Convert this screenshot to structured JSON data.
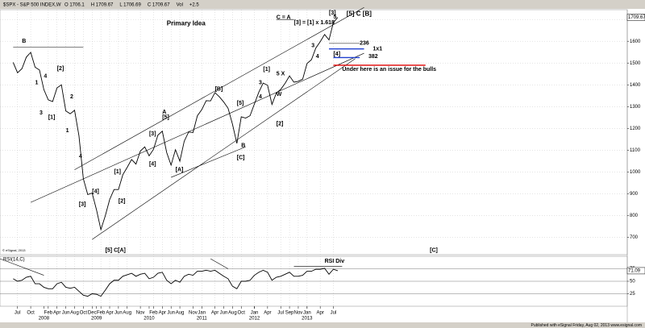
{
  "chart_data": [
    {
      "type": "line",
      "title": "$SPX - S&P 500 INDEX,W",
      "quote": [
        "O 1706.1",
        "H 1709.67",
        "L 1706.69",
        "C 1709.67",
        "Vol",
        "+2.5"
      ],
      "x": [
        "2007-06",
        "2007-07",
        "2007-08",
        "2007-09",
        "2007-10",
        "2007-11",
        "2007-12",
        "2008-01",
        "2008-02",
        "2008-03",
        "2008-04",
        "2008-05",
        "2008-06",
        "2008-07",
        "2008-08",
        "2008-09",
        "2008-10",
        "2008-11",
        "2008-12",
        "2009-01",
        "2009-02",
        "2009-03",
        "2009-04",
        "2009-05",
        "2009-06",
        "2009-07",
        "2009-08",
        "2009-09",
        "2009-10",
        "2009-11",
        "2009-12",
        "2010-01",
        "2010-02",
        "2010-03",
        "2010-04",
        "2010-05",
        "2010-06",
        "2010-07",
        "2010-08",
        "2010-09",
        "2010-10",
        "2010-11",
        "2010-12",
        "2011-01",
        "2011-02",
        "2011-03",
        "2011-04",
        "2011-05",
        "2011-06",
        "2011-07",
        "2011-08",
        "2011-09",
        "2011-10",
        "2011-11",
        "2011-12",
        "2012-01",
        "2012-02",
        "2012-03",
        "2012-04",
        "2012-05",
        "2012-06",
        "2012-07",
        "2012-08",
        "2012-09",
        "2012-10",
        "2012-11",
        "2012-12",
        "2013-01",
        "2013-02",
        "2013-03",
        "2013-04",
        "2013-05",
        "2013-06",
        "2013-07",
        "2013-08"
      ],
      "values": [
        1503,
        1455,
        1474,
        1527,
        1549,
        1481,
        1468,
        1378,
        1331,
        1323,
        1386,
        1400,
        1280,
        1267,
        1283,
        1166,
        969,
        896,
        903,
        826,
        735,
        798,
        873,
        919,
        919,
        987,
        1021,
        1057,
        1036,
        1096,
        1115,
        1074,
        1104,
        1169,
        1187,
        1089,
        1031,
        1102,
        1049,
        1141,
        1183,
        1181,
        1258,
        1286,
        1327,
        1326,
        1364,
        1345,
        1321,
        1292,
        1219,
        1131,
        1253,
        1247,
        1258,
        1312,
        1366,
        1408,
        1398,
        1310,
        1362,
        1379,
        1407,
        1441,
        1412,
        1416,
        1426,
        1498,
        1515,
        1569,
        1598,
        1631,
        1606,
        1686,
        1709.67
      ],
      "color": "#000000",
      "xlim": [
        "2007-03",
        "2019-02"
      ],
      "ylim": [
        620,
        1745
      ],
      "yticks": [
        700,
        800,
        900,
        1000,
        1100,
        1200,
        1300,
        1400,
        1500,
        1600,
        1700
      ],
      "grid": true,
      "xticks": [
        {
          "value": "2007-07",
          "label": "Jul"
        },
        {
          "value": "2007-10",
          "label": "Oct"
        },
        {
          "value": "2008-02",
          "label": "Feb"
        },
        {
          "value": "2008-04",
          "label": "Apr"
        },
        {
          "value": "2008-06",
          "label": "Jun"
        },
        {
          "value": "2008-08",
          "label": "Aug"
        },
        {
          "value": "2008-10",
          "label": "Oct"
        },
        {
          "value": "2008-12",
          "label": "Dec"
        },
        {
          "value": "2009-02",
          "label": "Feb"
        },
        {
          "value": "2009-04",
          "label": "Apr"
        },
        {
          "value": "2009-06",
          "label": "Jun"
        },
        {
          "value": "2009-08",
          "label": "Aug"
        },
        {
          "value": "2009-11",
          "label": "Nov"
        },
        {
          "value": "2010-02",
          "label": "Feb"
        },
        {
          "value": "2010-04",
          "label": "Apr"
        },
        {
          "value": "2010-06",
          "label": "Jun"
        },
        {
          "value": "2010-08",
          "label": "Aug"
        },
        {
          "value": "2010-11",
          "label": "Nov"
        },
        {
          "value": "2011-01",
          "label": "Jan"
        },
        {
          "value": "2011-04",
          "label": "Apr"
        },
        {
          "value": "2011-06",
          "label": "Jun"
        },
        {
          "value": "2011-08",
          "label": "Aug"
        },
        {
          "value": "2011-10",
          "label": "Oct"
        },
        {
          "value": "2012-01",
          "label": "Jan"
        },
        {
          "value": "2012-04",
          "label": "Apr"
        },
        {
          "value": "2012-07",
          "label": "Jul"
        },
        {
          "value": "2012-09",
          "label": "Sep"
        },
        {
          "value": "2012-11",
          "label": "Nov"
        },
        {
          "value": "2013-01",
          "label": "Jan"
        },
        {
          "value": "2013-04",
          "label": "Apr"
        },
        {
          "value": "2013-07",
          "label": "Jul"
        }
      ],
      "year_ticks": [
        {
          "value": "2008-01",
          "label": "2008"
        },
        {
          "value": "2009-01",
          "label": "2009"
        },
        {
          "value": "2010-01",
          "label": "2010"
        },
        {
          "value": "2011-01",
          "label": "2011"
        },
        {
          "value": "2012-01",
          "label": "2012"
        },
        {
          "value": "2013-01",
          "label": "2013"
        }
      ],
      "annotations": [
        {
          "text": "Primary Idea",
          "x": "2010-05",
          "y": 1680,
          "big": true
        },
        {
          "text": "B",
          "x": "2007-08",
          "y": 1600
        },
        {
          "text": "1",
          "x": "2007-11",
          "y": 1410
        },
        {
          "text": "4",
          "x": "2008-01",
          "y": 1440
        },
        {
          "text": "[2]",
          "x": "2008-04",
          "y": 1475
        },
        {
          "text": "3",
          "x": "2007-12",
          "y": 1270
        },
        {
          "text": "[1]",
          "x": "2008-02",
          "y": 1250
        },
        {
          "text": "2",
          "x": "2008-07",
          "y": 1345
        },
        {
          "text": "1",
          "x": "2008-06",
          "y": 1190
        },
        {
          "text": "4",
          "x": "2008-09",
          "y": 1070
        },
        {
          "text": "[3]",
          "x": "2008-09",
          "y": 850
        },
        {
          "text": "[4]",
          "x": "2008-12",
          "y": 910
        },
        {
          "text": "[5] C[A]",
          "x": "2009-03",
          "y": 640
        },
        {
          "text": "[1]",
          "x": "2009-05",
          "y": 1000
        },
        {
          "text": "[2]",
          "x": "2009-06",
          "y": 865
        },
        {
          "text": "[3]",
          "x": "2010-01",
          "y": 1175
        },
        {
          "text": "[4]",
          "x": "2010-01",
          "y": 1035
        },
        {
          "text": "A",
          "x": "2010-04",
          "y": 1275
        },
        {
          "text": "[5]",
          "x": "2010-04",
          "y": 1250
        },
        {
          "text": "[A]",
          "x": "2010-07",
          "y": 1010
        },
        {
          "text": "[B]",
          "x": "2011-04",
          "y": 1380
        },
        {
          "text": "[5]",
          "x": "2011-09",
          "y": 1315
        },
        {
          "text": "[C]",
          "x": "2011-09",
          "y": 1065
        },
        {
          "text": "B",
          "x": "2011-10",
          "y": 1120
        },
        {
          "text": "3",
          "x": "2012-02",
          "y": 1410
        },
        {
          "text": "[1]",
          "x": "2012-03",
          "y": 1470
        },
        {
          "text": "4",
          "x": "2012-02",
          "y": 1345
        },
        {
          "text": "5 X",
          "x": "2012-06",
          "y": 1450
        },
        {
          "text": "W",
          "x": "2012-06",
          "y": 1355
        },
        {
          "text": "[2]",
          "x": "2012-06",
          "y": 1220
        },
        {
          "text": "C = A",
          "x": "2012-06",
          "y": 1710
        },
        {
          "text": "[3] = [1] x 1.618",
          "x": "2012-10",
          "y": 1685
        },
        {
          "text": "3",
          "x": "2013-02",
          "y": 1580
        },
        {
          "text": "4",
          "x": "2013-03",
          "y": 1530
        },
        {
          "text": "[4]",
          "x": "2013-07",
          "y": 1540
        },
        {
          "text": "[3]",
          "x": "2013-06",
          "y": 1730
        },
        {
          "text": "5",
          "x": "2013-07",
          "y": 1712
        },
        {
          "text": "[5] C [B]",
          "x": "2013-10",
          "y": 1725,
          "big": true
        },
        {
          "text": "236",
          "x": "2014-01",
          "y": 1590
        },
        {
          "text": "1x1",
          "x": "2014-04",
          "y": 1565
        },
        {
          "text": "382",
          "x": "2014-03",
          "y": 1530
        },
        {
          "text": "Under here is an issue for the bulls",
          "x": "2013-09",
          "y": 1470
        },
        {
          "text": "[C]",
          "x": "2015-05",
          "y": 640
        }
      ],
      "lines": [
        {
          "x": [
            "2007-06",
            "2008-10"
          ],
          "y": [
            1572,
            1572
          ],
          "color": "#000000"
        },
        {
          "x": [
            "2012-06",
            "2012-10"
          ],
          "y": [
            1700,
            1700
          ],
          "color": "#000000"
        },
        {
          "x": [
            "2007-10",
            "2014-02"
          ],
          "y": [
            860,
            1545
          ],
          "color": "#000000"
        },
        {
          "x": [
            "2008-08",
            "2014-02"
          ],
          "y": [
            1010,
            1755
          ],
          "color": "#000000"
        },
        {
          "x": [
            "2008-12",
            "2013-12"
          ],
          "y": [
            690,
            1520
          ],
          "color": "#000000"
        },
        {
          "x": [
            "2010-06",
            "2011-11"
          ],
          "y": [
            975,
            1115
          ],
          "color": "#000000"
        },
        {
          "x": [
            "2013-06",
            "2014-01"
          ],
          "y": [
            1590,
            1590
          ],
          "color": "#000000"
        },
        {
          "x": [
            "2013-06",
            "2014-02"
          ],
          "y": [
            1565,
            1565
          ],
          "color": "#1f3fd0"
        },
        {
          "x": [
            "2013-07",
            "2014-01"
          ],
          "y": [
            1525,
            1525
          ],
          "color": "#1f3fd0"
        },
        {
          "x": [
            "2013-07",
            "2015-04"
          ],
          "y": [
            1490,
            1490
          ],
          "color": "#e00000"
        }
      ]
    },
    {
      "type": "line",
      "title": "RSI(14,C)",
      "x": [
        "2007-06",
        "2007-07",
        "2007-08",
        "2007-09",
        "2007-10",
        "2007-11",
        "2007-12",
        "2008-01",
        "2008-02",
        "2008-03",
        "2008-04",
        "2008-05",
        "2008-06",
        "2008-07",
        "2008-08",
        "2008-09",
        "2008-10",
        "2008-11",
        "2008-12",
        "2009-01",
        "2009-02",
        "2009-03",
        "2009-04",
        "2009-05",
        "2009-06",
        "2009-07",
        "2009-08",
        "2009-09",
        "2009-10",
        "2009-11",
        "2009-12",
        "2010-01",
        "2010-02",
        "2010-03",
        "2010-04",
        "2010-05",
        "2010-06",
        "2010-07",
        "2010-08",
        "2010-09",
        "2010-10",
        "2010-11",
        "2010-12",
        "2011-01",
        "2011-02",
        "2011-03",
        "2011-04",
        "2011-05",
        "2011-06",
        "2011-07",
        "2011-08",
        "2011-09",
        "2011-10",
        "2011-11",
        "2011-12",
        "2012-01",
        "2012-02",
        "2012-03",
        "2012-04",
        "2012-05",
        "2012-06",
        "2012-07",
        "2012-08",
        "2012-09",
        "2012-10",
        "2012-11",
        "2012-12",
        "2013-01",
        "2013-02",
        "2013-03",
        "2013-04",
        "2013-05",
        "2013-06",
        "2013-07",
        "2013-08"
      ],
      "values": [
        55,
        50,
        52,
        58,
        60,
        45,
        45,
        38,
        35,
        35,
        45,
        48,
        38,
        36,
        38,
        30,
        22,
        20,
        25,
        24,
        20,
        32,
        45,
        52,
        52,
        60,
        63,
        66,
        60,
        64,
        66,
        55,
        58,
        66,
        68,
        52,
        45,
        52,
        48,
        60,
        64,
        62,
        70,
        70,
        72,
        70,
        72,
        66,
        60,
        55,
        40,
        35,
        50,
        50,
        52,
        62,
        68,
        72,
        68,
        52,
        58,
        60,
        64,
        68,
        60,
        60,
        62,
        70,
        70,
        74,
        74,
        76,
        64,
        74,
        71.09
      ],
      "color": "#000000",
      "ylim": [
        0,
        100
      ],
      "yticks": [
        25,
        50,
        75
      ],
      "annotations": [
        {
          "text": "RSI Div",
          "x": "2013-05",
          "y": 90
        }
      ],
      "lines": [
        {
          "x": [
            "2007-03",
            "2008-01"
          ],
          "y": [
            95,
            62
          ],
          "color": "#000000"
        },
        {
          "x": [
            "2011-03",
            "2011-07"
          ],
          "y": [
            95,
            75
          ],
          "color": "#000000"
        },
        {
          "x": [
            "2012-10",
            "2013-09"
          ],
          "y": [
            80,
            80
          ],
          "color": "#000000"
        }
      ]
    }
  ],
  "credit": "© eSignal, 2013",
  "footer": "Published with eSignal   Friday, Aug 02, 2013   www.esignal.com"
}
